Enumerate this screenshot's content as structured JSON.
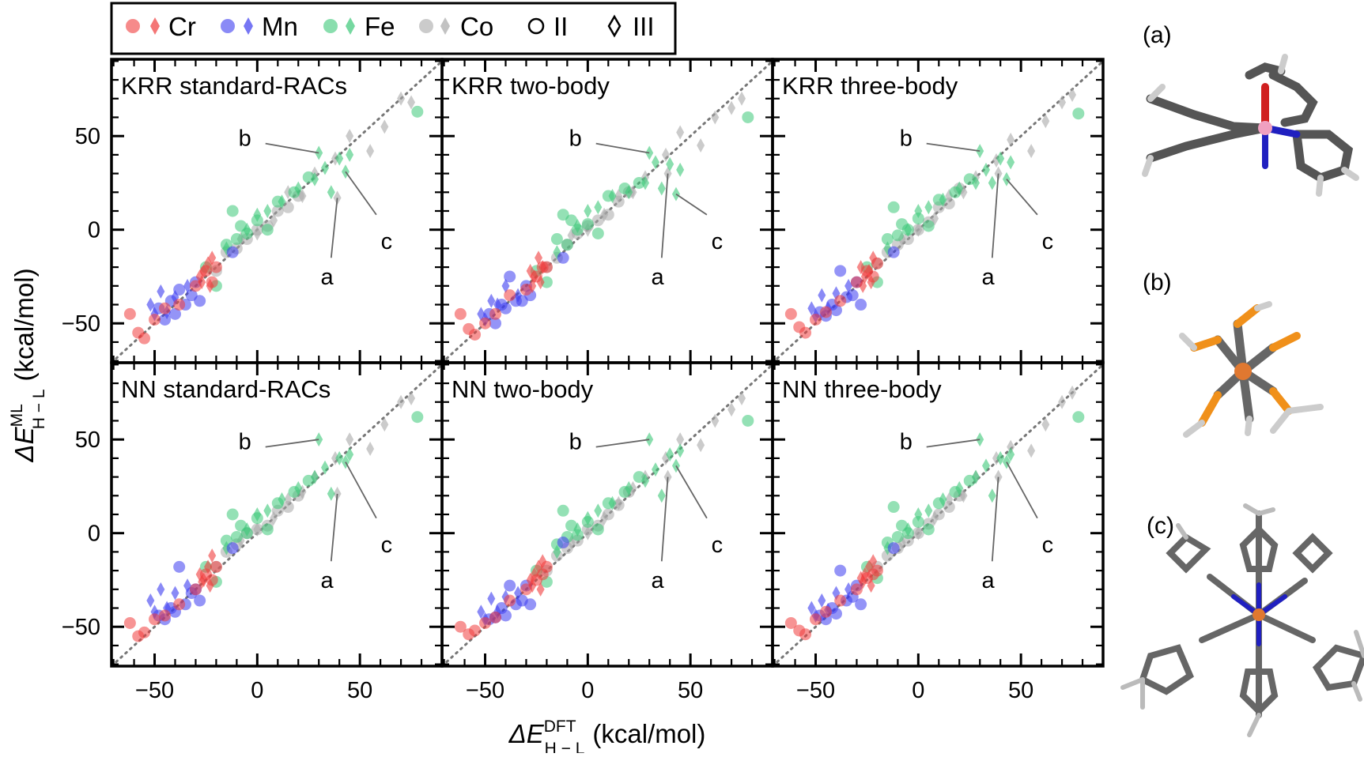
{
  "chart_data": {
    "type": "scatter",
    "layout": "2x3 grid with shared axes",
    "xlabel": {
      "base": "ΔE",
      "sup": "DFT",
      "sub": "H − L",
      "unit": "(kcal/mol)"
    },
    "ylabel": {
      "base": "ΔE",
      "sup": "ML",
      "sub": "H − L",
      "unit": "(kcal/mol)"
    },
    "xlim": [
      -71,
      90
    ],
    "ylim": [
      -71,
      91
    ],
    "xticks": [
      -50,
      0,
      50
    ],
    "yticks": [
      -50,
      0,
      50
    ],
    "minor_tick_step": 10,
    "parity_line": true,
    "grid": false,
    "legend": {
      "placement": "top",
      "entries": [
        {
          "label": "Cr",
          "metal": "Cr"
        },
        {
          "label": "Mn",
          "metal": "Mn"
        },
        {
          "label": "Fe",
          "metal": "Fe"
        },
        {
          "label": "Co",
          "metal": "Co"
        },
        {
          "label": "II",
          "marker": "circle-open"
        },
        {
          "label": "III",
          "marker": "diamond-open"
        }
      ]
    },
    "colors": {
      "Cr": "#f03c3c",
      "Mn": "#3c3cf0",
      "Fe": "#3cc878",
      "Co": "#a8a8a8"
    },
    "markers": {
      "II": "circle",
      "III": "diamond"
    },
    "dft_x": {
      "Cr": {
        "II": [
          -62,
          -58,
          -55,
          -50,
          -45,
          -38,
          -30,
          -25,
          -22,
          -20
        ],
        "III": [
          -28,
          -26,
          -24,
          -23,
          -22,
          -27
        ]
      },
      "Mn": {
        "II": [
          -48,
          -45,
          -42,
          -40,
          -38,
          -35,
          -32,
          -30,
          -28,
          -12
        ],
        "III": [
          -52,
          -50,
          -47,
          -44,
          -40,
          -34
        ]
      },
      "Fe": {
        "II": [
          -25,
          -20,
          -15,
          -10,
          -8,
          -5,
          0,
          5,
          -12,
          10,
          18,
          25,
          78
        ],
        "III": [
          -15,
          -5,
          0,
          5,
          12,
          20,
          28,
          30,
          43,
          40,
          45,
          33,
          36
        ]
      },
      "Co": {
        "II": [
          -20,
          -15,
          -10,
          -5,
          0,
          5,
          10,
          15,
          20
        ],
        "III": [
          -8,
          0,
          8,
          15,
          22,
          28,
          39,
          38,
          45,
          55,
          62,
          70,
          75
        ]
      }
    },
    "panels": [
      {
        "title": "KRR standard-RACs",
        "ml_y": {
          "Cr": {
            "II": [
              -45,
              -55,
              -58,
              -48,
              -42,
              -40,
              -30,
              -22,
              -28,
              -20
            ],
            "III": [
              -25,
              -22,
              -18,
              -30,
              -15,
              -28
            ]
          },
          "Mn": {
            "II": [
              -42,
              -48,
              -38,
              -45,
              -32,
              -40,
              -35,
              -28,
              -38,
              -12
            ],
            "III": [
              -40,
              -45,
              -33,
              -44,
              -36,
              -30
            ]
          },
          "Fe": {
            "II": [
              -20,
              -30,
              -8,
              -5,
              2,
              -2,
              5,
              0,
              10,
              15,
              20,
              28,
              63
            ],
            "III": [
              -10,
              0,
              8,
              10,
              15,
              22,
              27,
              41,
              31,
              38,
              40,
              33,
              20
            ]
          },
          "Co": {
            "II": [
              -22,
              -12,
              -10,
              -5,
              0,
              2,
              10,
              12,
              18
            ],
            "III": [
              -5,
              -2,
              5,
              20,
              18,
              30,
              17,
              38,
              50,
              42,
              55,
              70,
              68
            ]
          }
        }
      },
      {
        "title": "KRR two-body",
        "ml_y": {
          "Cr": {
            "II": [
              -45,
              -53,
              -56,
              -50,
              -45,
              -35,
              -32,
              -25,
              -20,
              -20
            ],
            "III": [
              -22,
              -25,
              -15,
              -28,
              -20,
              -30
            ]
          },
          "Mn": {
            "II": [
              -45,
              -50,
              -40,
              -42,
              -25,
              -38,
              -38,
              -30,
              -35,
              -15
            ],
            "III": [
              -45,
              -48,
              -38,
              -40,
              -30,
              -35
            ]
          },
          "Fe": {
            "II": [
              -22,
              -28,
              -5,
              -8,
              5,
              0,
              3,
              -2,
              8,
              18,
              22,
              25,
              60
            ],
            "III": [
              -12,
              2,
              10,
              12,
              18,
              20,
              25,
              41,
              19,
              35,
              32,
              36,
              22
            ]
          },
          "Co": {
            "II": [
              -20,
              -15,
              -8,
              -2,
              2,
              5,
              8,
              15,
              20
            ],
            "III": [
              -3,
              0,
              8,
              18,
              20,
              28,
              30,
              40,
              52,
              45,
              60,
              65,
              70
            ]
          }
        }
      },
      {
        "title": "KRR three-body",
        "ml_y": {
          "Cr": {
            "II": [
              -45,
              -52,
              -55,
              -48,
              -44,
              -38,
              -28,
              -22,
              -25,
              -18
            ],
            "III": [
              -20,
              -25,
              -22,
              -28,
              -15,
              -30
            ]
          },
          "Mn": {
            "II": [
              -44,
              -46,
              -40,
              -43,
              -22,
              -36,
              -35,
              -28,
              -40,
              -12
            ],
            "III": [
              -42,
              -46,
              -35,
              -42,
              -34,
              -30
            ]
          },
          "Fe": {
            "II": [
              -20,
              -28,
              -5,
              -3,
              3,
              0,
              6,
              2,
              12,
              16,
              20,
              27,
              62
            ],
            "III": [
              -10,
              0,
              10,
              12,
              16,
              22,
              25,
              42,
              27,
              38,
              36,
              32,
              25
            ]
          },
          "Co": {
            "II": [
              -18,
              -12,
              -8,
              -5,
              0,
              4,
              12,
              14,
              22
            ],
            "III": [
              -5,
              0,
              6,
              18,
              20,
              28,
              30,
              37,
              48,
              42,
              58,
              68,
              72
            ]
          }
        }
      },
      {
        "title": "NN standard-RACs",
        "ml_y": {
          "Cr": {
            "II": [
              -48,
              -55,
              -53,
              -46,
              -44,
              -38,
              -30,
              -22,
              -25,
              -18
            ],
            "III": [
              -22,
              -25,
              -18,
              -28,
              -12,
              -26
            ]
          },
          "Mn": {
            "II": [
              -44,
              -46,
              -40,
              -42,
              -18,
              -38,
              -32,
              -30,
              -36,
              -8
            ],
            "III": [
              -36,
              -42,
              -30,
              -40,
              -32,
              -28
            ]
          },
          "Fe": {
            "II": [
              -18,
              -26,
              -4,
              -2,
              4,
              0,
              8,
              2,
              10,
              16,
              22,
              28,
              62
            ],
            "III": [
              -8,
              2,
              10,
              12,
              18,
              24,
              30,
              50,
              38,
              40,
              42,
              35,
              21
            ]
          },
          "Co": {
            "II": [
              -18,
              -10,
              -6,
              0,
              2,
              4,
              12,
              14,
              20
            ],
            "III": [
              -4,
              2,
              8,
              18,
              22,
              30,
              21,
              40,
              50,
              45,
              58,
              70,
              72
            ]
          }
        }
      },
      {
        "title": "NN two-body",
        "ml_y": {
          "Cr": {
            "II": [
              -50,
              -54,
              -52,
              -48,
              -45,
              -36,
              -30,
              -25,
              -22,
              -18
            ],
            "III": [
              -25,
              -22,
              -18,
              -30,
              -15,
              -28
            ]
          },
          "Mn": {
            "II": [
              -46,
              -45,
              -40,
              -44,
              -28,
              -38,
              -36,
              -28,
              -38,
              -5
            ],
            "III": [
              -42,
              -46,
              -35,
              -42,
              -34,
              -32
            ]
          },
          "Fe": {
            "II": [
              -20,
              -26,
              -6,
              -2,
              4,
              -1,
              6,
              2,
              12,
              16,
              22,
              30,
              60
            ],
            "III": [
              -10,
              2,
              8,
              12,
              16,
              24,
              28,
              50,
              36,
              42,
              44,
              34,
              20
            ]
          },
          "Co": {
            "II": [
              -20,
              -12,
              -8,
              -4,
              2,
              4,
              10,
              15,
              22
            ],
            "III": [
              -5,
              0,
              8,
              16,
              24,
              30,
              30,
              40,
              50,
              47,
              60,
              66,
              72
            ]
          }
        }
      },
      {
        "title": "NN three-body",
        "ml_y": {
          "Cr": {
            "II": [
              -48,
              -52,
              -54,
              -46,
              -42,
              -36,
              -30,
              -24,
              -22,
              -20
            ],
            "III": [
              -24,
              -22,
              -18,
              -28,
              -15,
              -26
            ]
          },
          "Mn": {
            "II": [
              -44,
              -46,
              -40,
              -43,
              -20,
              -36,
              -34,
              -28,
              -38,
              -8
            ],
            "III": [
              -40,
              -44,
              -36,
              -41,
              -32,
              -30
            ]
          },
          "Fe": {
            "II": [
              -18,
              -24,
              -5,
              -2,
              4,
              0,
              6,
              2,
              14,
              16,
              22,
              28,
              62
            ],
            "III": [
              -8,
              2,
              10,
              12,
              18,
              24,
              30,
              50,
              38,
              40,
              42,
              36,
              20
            ]
          },
          "Co": {
            "II": [
              -18,
              -12,
              -8,
              -4,
              0,
              5,
              10,
              14,
              20
            ],
            "III": [
              -5,
              0,
              8,
              18,
              20,
              30,
              30,
              40,
              46,
              44,
              58,
              70,
              75
            ]
          }
        }
      }
    ],
    "annotations": [
      {
        "label": "a",
        "metal": "Co",
        "ox": "III",
        "index": 6
      },
      {
        "label": "b",
        "metal": "Fe",
        "ox": "III",
        "index": 7
      },
      {
        "label": "c",
        "metal": "Fe",
        "ox": "III",
        "index": 8
      }
    ]
  },
  "structures": [
    {
      "label": "(a)"
    },
    {
      "label": "(b)"
    },
    {
      "label": "(c)"
    }
  ]
}
